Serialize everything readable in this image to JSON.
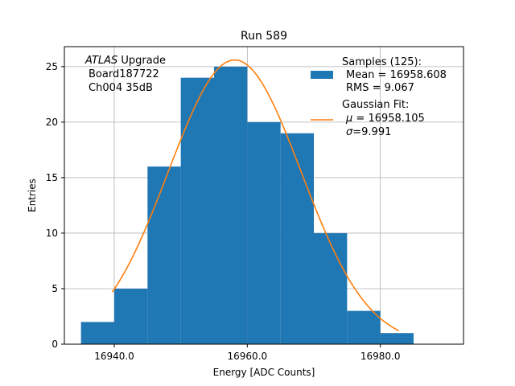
{
  "chart_data": {
    "type": "bar",
    "title": "Run 589",
    "xlabel": "Energy [ADC Counts]",
    "ylabel": "Entries",
    "xlim": [
      16932.5,
      16992.5
    ],
    "ylim": [
      0,
      26.8
    ],
    "grid": true,
    "x_ticks": [
      16940.0,
      16960.0,
      16980.0
    ],
    "x_tick_labels": [
      "16940.0",
      "16960.0",
      "16980.0"
    ],
    "y_ticks": [
      0,
      5,
      10,
      15,
      20,
      25
    ],
    "y_tick_labels": [
      "0",
      "5",
      "10",
      "15",
      "20",
      "25"
    ],
    "annotation": {
      "atlas": "ATLAS",
      "atlas_suffix": " Upgrade",
      "line2": "Board187722",
      "line3": "Ch004 35dB"
    },
    "legend": {
      "placement": "top-right",
      "hist_title": "Samples (125):",
      "hist_mean": "Mean = 16958.608",
      "hist_rms": "RMS = 9.067",
      "fit_title": "Gaussian Fit:",
      "fit_mu_symbol": "μ",
      "fit_mu_value": " = 16958.105",
      "fit_sigma_symbol": "σ",
      "fit_sigma_value": "=9.991"
    },
    "histogram": {
      "name": "Samples (125)",
      "color": "#1f77b4",
      "bins": [
        {
          "x0": 16935,
          "x1": 16940,
          "count": 2
        },
        {
          "x0": 16940,
          "x1": 16945,
          "count": 5
        },
        {
          "x0": 16945,
          "x1": 16950,
          "count": 16
        },
        {
          "x0": 16950,
          "x1": 16955,
          "count": 24
        },
        {
          "x0": 16955,
          "x1": 16960,
          "count": 25
        },
        {
          "x0": 16960,
          "x1": 16965,
          "count": 20
        },
        {
          "x0": 16965,
          "x1": 16970,
          "count": 19
        },
        {
          "x0": 16970,
          "x1": 16975,
          "count": 10
        },
        {
          "x0": 16975,
          "x1": 16980,
          "count": 3
        },
        {
          "x0": 16980,
          "x1": 16985,
          "count": 1
        }
      ]
    },
    "fit": {
      "name": "Gaussian Fit",
      "color": "#ff7f0e",
      "mu": 16958.105,
      "sigma": 9.991,
      "amplitude": 25.6,
      "x_range": [
        16939.7,
        16982.8
      ]
    },
    "grid_color": "#b0b0b0"
  }
}
